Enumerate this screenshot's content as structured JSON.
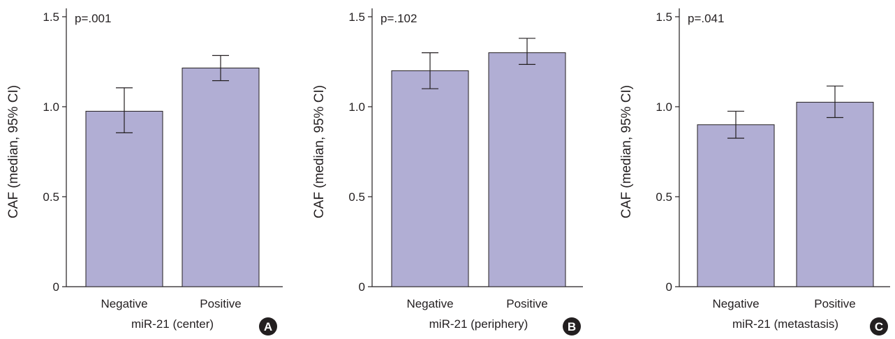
{
  "bar_color": "#b1aed4",
  "chart_data": [
    {
      "type": "bar",
      "panel": "A",
      "annotation": "p=.001",
      "categories": [
        "Negative",
        "Positive"
      ],
      "values": [
        0.975,
        1.215
      ],
      "ci_low": [
        0.855,
        1.145
      ],
      "ci_high": [
        1.105,
        1.285
      ],
      "xlabel": "miR-21 (center)",
      "ylabel": "CAF (median, 95% CI)",
      "ylim": [
        0,
        1.5
      ],
      "yticks": [
        0,
        0.5,
        1.0,
        1.5
      ],
      "ytick_labels": [
        "0",
        "0.5",
        "1.0",
        "1.5"
      ],
      "grid": false
    },
    {
      "type": "bar",
      "panel": "B",
      "annotation": "p=.102",
      "categories": [
        "Negative",
        "Positive"
      ],
      "values": [
        1.2,
        1.3
      ],
      "ci_low": [
        1.1,
        1.235
      ],
      "ci_high": [
        1.3,
        1.38
      ],
      "xlabel": "miR-21 (periphery)",
      "ylabel": "CAF (median, 95% CI)",
      "ylim": [
        0,
        1.5
      ],
      "yticks": [
        0,
        0.5,
        1.0,
        1.5
      ],
      "ytick_labels": [
        "0",
        "0.5",
        "1.0",
        "1.5"
      ],
      "grid": false
    },
    {
      "type": "bar",
      "panel": "C",
      "annotation": "p=.041",
      "categories": [
        "Negative",
        "Positive"
      ],
      "values": [
        0.9,
        1.025
      ],
      "ci_low": [
        0.825,
        0.94
      ],
      "ci_high": [
        0.975,
        1.115
      ],
      "xlabel": "miR-21 (metastasis)",
      "ylabel": "CAF (median, 95% CI)",
      "ylim": [
        0,
        1.5
      ],
      "yticks": [
        0,
        0.5,
        1.0,
        1.5
      ],
      "ytick_labels": [
        "0",
        "0.5",
        "1.0",
        "1.5"
      ],
      "grid": false
    }
  ]
}
